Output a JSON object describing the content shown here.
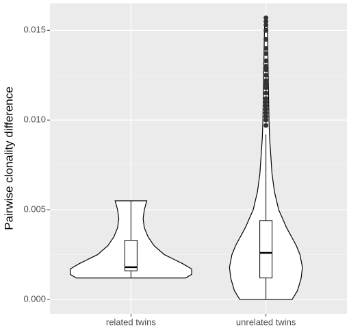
{
  "chart_data": {
    "type": "violin",
    "ylabel": "Pairwise clonality difference",
    "categories": [
      "related twins",
      "unrelated twins"
    ],
    "ylim": [
      -0.0008,
      0.0165
    ],
    "yticks": [
      {
        "value": 0,
        "label": "0.000"
      },
      {
        "value": 0.005,
        "label": "0.005"
      },
      {
        "value": 0.01,
        "label": "0.010"
      },
      {
        "value": 0.015,
        "label": "0.015"
      }
    ],
    "yminor": [
      0.0025,
      0.0075,
      0.0125
    ],
    "grid": true,
    "violins": [
      {
        "y": [
          0.0012,
          0.0014,
          0.0017,
          0.002,
          0.0025,
          0.003,
          0.0035,
          0.004,
          0.0045,
          0.005,
          0.0055
        ],
        "width": [
          0.9,
          1.0,
          1.0,
          0.85,
          0.55,
          0.38,
          0.28,
          0.22,
          0.2,
          0.22,
          0.26
        ]
      },
      {
        "y": [
          0,
          0.0005,
          0.0012,
          0.0018,
          0.0025,
          0.003,
          0.004,
          0.005,
          0.006,
          0.007,
          0.008,
          0.009,
          0.01,
          0.012,
          0.014,
          0.015,
          0.0157
        ],
        "width": [
          0.43,
          0.52,
          0.58,
          0.6,
          0.56,
          0.5,
          0.34,
          0.21,
          0.14,
          0.1,
          0.08,
          0.06,
          0.05,
          0.04,
          0.03,
          0.025,
          0.015
        ]
      }
    ],
    "boxes": [
      {
        "min": 0.0012,
        "q1": 0.0016,
        "median": 0.0018,
        "q3": 0.0033,
        "max": 0.0055,
        "outliers": []
      },
      {
        "min": 0,
        "q1": 0.0012,
        "median": 0.0026,
        "q3": 0.0044,
        "max": 0.0092,
        "outliers": [
          0.0097,
          0.01,
          0.0102,
          0.0104,
          0.0106,
          0.0108,
          0.011,
          0.0112,
          0.0115,
          0.0118,
          0.012,
          0.0122,
          0.0125,
          0.0128,
          0.013,
          0.0133,
          0.0137,
          0.014,
          0.0145,
          0.015,
          0.0153,
          0.0155,
          0.0157
        ]
      }
    ]
  }
}
